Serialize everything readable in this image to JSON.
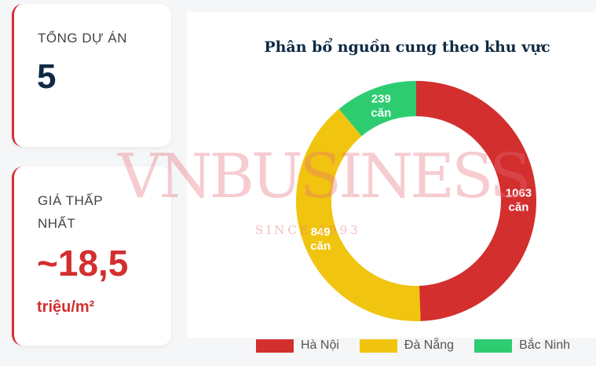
{
  "stats": [
    {
      "label": "TỔNG DỰ ÁN",
      "value": "5"
    },
    {
      "label_line1": "GIÁ THẤP",
      "label_line2": "NHẤT",
      "value": "~18,5",
      "unit": "triệu/m²"
    }
  ],
  "watermark": {
    "text": "VNBUSINESS",
    "since": "SINCE 1993"
  },
  "chart_data": {
    "type": "pie",
    "variant": "doughnut",
    "title": "Phân bổ nguồn cung theo khu vực",
    "categories": [
      "Hà Nội",
      "Đà Nẵng",
      "Bắc Ninh"
    ],
    "values": [
      1063,
      849,
      239
    ],
    "data_labels": [
      [
        "1063",
        "căn"
      ],
      [
        "849",
        "căn"
      ],
      [
        "239",
        "căn"
      ]
    ],
    "colors": [
      "#d32f2f",
      "#f1c40f",
      "#2ecc71"
    ],
    "legend": "bottom"
  }
}
